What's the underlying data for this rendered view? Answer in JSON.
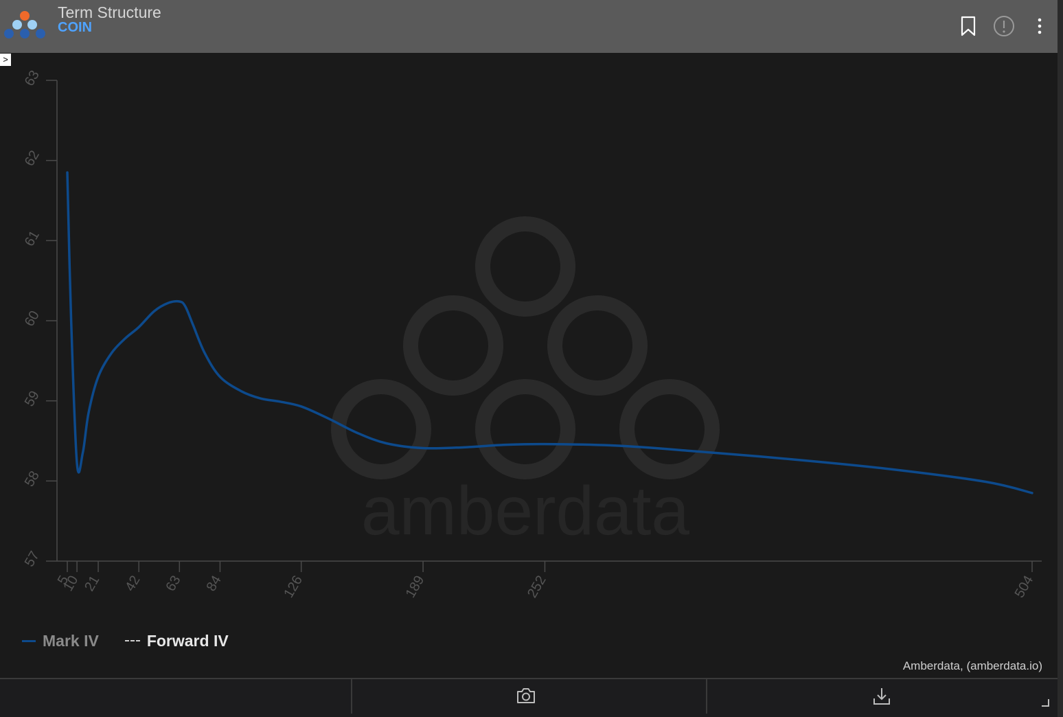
{
  "header": {
    "title": "Term Structure",
    "subtitle": "COIN",
    "icons": [
      "bookmark-icon",
      "info-icon",
      "more-vertical-icon"
    ]
  },
  "expander": {
    "label": ">"
  },
  "watermark": {
    "text": "amberdata"
  },
  "legend": {
    "items": [
      {
        "label": "Mark IV",
        "style": "solid",
        "color": "#0d4a8c"
      },
      {
        "label": "Forward IV",
        "style": "dashed",
        "color": "#d0d0d0"
      }
    ]
  },
  "credit": "Amberdata, (amberdata.io)",
  "toolbar": {
    "icons": [
      "camera-icon",
      "download-icon"
    ]
  },
  "colors": {
    "background": "#1a1a1a",
    "header": "#5a5a5a",
    "accent": "#4fa3ff",
    "line": "#0d4a8c"
  },
  "chart_data": {
    "type": "line",
    "xlabel": "",
    "ylabel": "",
    "xlim": [
      5,
      504
    ],
    "ylim": [
      57,
      63
    ],
    "x_ticks": [
      5,
      10,
      21,
      42,
      63,
      84,
      126,
      189,
      252,
      504
    ],
    "y_ticks": [
      57,
      58,
      59,
      60,
      61,
      62,
      63
    ],
    "grid": false,
    "legend_position": "bottom-left",
    "series": [
      {
        "name": "Mark IV",
        "x": [
          5,
          7,
          10,
          13,
          16,
          21,
          28,
          35,
          42,
          50,
          57,
          63,
          66,
          70,
          76,
          84,
          95,
          105,
          115,
          126,
          140,
          155,
          170,
          189,
          210,
          230,
          252,
          290,
          330,
          380,
          430,
          480,
          504
        ],
        "y": [
          61.85,
          60.0,
          58.22,
          58.35,
          58.85,
          59.3,
          59.6,
          59.78,
          59.92,
          60.12,
          60.22,
          60.24,
          60.18,
          59.95,
          59.6,
          59.3,
          59.12,
          59.03,
          58.99,
          58.93,
          58.78,
          58.6,
          58.47,
          58.41,
          58.42,
          58.45,
          58.46,
          58.44,
          58.37,
          58.27,
          58.15,
          57.99,
          57.85
        ]
      },
      {
        "name": "Forward IV",
        "x": [],
        "y": []
      }
    ]
  }
}
